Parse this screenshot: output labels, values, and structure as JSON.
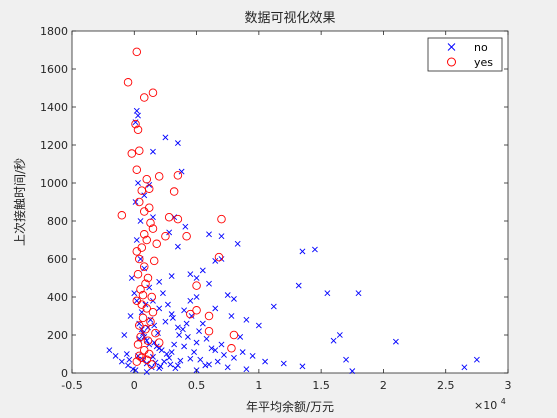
{
  "chart_data": {
    "type": "scatter",
    "title": "数据可视化效果",
    "xlabel": "年平均余额/万元",
    "ylabel": "上次接触时间/秒",
    "xlim": [
      -5000,
      30000
    ],
    "ylim": [
      0,
      1800
    ],
    "x_tick_labels": [
      "-0.5",
      "0",
      "0.5",
      "1",
      "1.5",
      "2",
      "2.5",
      "3"
    ],
    "x_tick_values": [
      -5000,
      0,
      5000,
      10000,
      15000,
      20000,
      25000,
      30000
    ],
    "x_exponent": "×10^4",
    "x_exponent_base": "×10",
    "x_exponent_power": "4",
    "y_ticks": [
      0,
      200,
      400,
      600,
      800,
      1000,
      1200,
      1400,
      1600,
      1800
    ],
    "grid": false,
    "legend_position": "top-right",
    "series": [
      {
        "name": "no",
        "marker": "x",
        "color": "#0000ff",
        "points": [
          [
            200,
            1380
          ],
          [
            300,
            1355
          ],
          [
            100,
            1320
          ],
          [
            2500,
            1240
          ],
          [
            3500,
            1210
          ],
          [
            1500,
            1165
          ],
          [
            3800,
            1060
          ],
          [
            1200,
            990
          ],
          [
            800,
            935
          ],
          [
            1500,
            820
          ],
          [
            3200,
            820
          ],
          [
            4100,
            770
          ],
          [
            2800,
            740
          ],
          [
            6000,
            730
          ],
          [
            7000,
            720
          ],
          [
            8300,
            680
          ],
          [
            3500,
            665
          ],
          [
            14500,
            650
          ],
          [
            13500,
            640
          ],
          [
            7000,
            600
          ],
          [
            6500,
            590
          ],
          [
            5500,
            540
          ],
          [
            4500,
            520
          ],
          [
            3000,
            510
          ],
          [
            5000,
            500
          ],
          [
            2000,
            480
          ],
          [
            6000,
            470
          ],
          [
            13200,
            460
          ],
          [
            15500,
            420
          ],
          [
            18000,
            420
          ],
          [
            7500,
            410
          ],
          [
            5000,
            400
          ],
          [
            8000,
            390
          ],
          [
            4500,
            380
          ],
          [
            11200,
            350
          ],
          [
            6500,
            340
          ],
          [
            4000,
            330
          ],
          [
            3000,
            310
          ],
          [
            7800,
            300
          ],
          [
            9000,
            280
          ],
          [
            2500,
            270
          ],
          [
            5500,
            260
          ],
          [
            10000,
            250
          ],
          [
            3500,
            240
          ],
          [
            16500,
            200
          ],
          [
            8500,
            190
          ],
          [
            16000,
            170
          ],
          [
            21000,
            165
          ],
          [
            5000,
            160
          ],
          [
            7000,
            150
          ],
          [
            4000,
            140
          ],
          [
            2000,
            130
          ],
          [
            6500,
            120
          ],
          [
            3000,
            110
          ],
          [
            9500,
            90
          ],
          [
            1500,
            85
          ],
          [
            8000,
            80
          ],
          [
            4500,
            75
          ],
          [
            17000,
            70
          ],
          [
            27500,
            70
          ],
          [
            10500,
            60
          ],
          [
            12000,
            50
          ],
          [
            6000,
            45
          ],
          [
            3500,
            40
          ],
          [
            13500,
            35
          ],
          [
            26500,
            30
          ],
          [
            2000,
            25
          ],
          [
            9000,
            20
          ],
          [
            5000,
            15
          ],
          [
            17500,
            10
          ],
          [
            1000,
            5
          ],
          [
            -2000,
            120
          ],
          [
            -1500,
            90
          ],
          [
            -1000,
            60
          ],
          [
            -500,
            40
          ],
          [
            -800,
            200
          ],
          [
            -300,
            300
          ],
          [
            500,
            600
          ],
          [
            800,
            550
          ],
          [
            1200,
            450
          ],
          [
            1500,
            380
          ],
          [
            900,
            360
          ],
          [
            600,
            320
          ],
          [
            1300,
            280
          ],
          [
            1100,
            240
          ],
          [
            700,
            210
          ],
          [
            400,
            180
          ],
          [
            1600,
            160
          ],
          [
            1800,
            140
          ],
          [
            2200,
            120
          ],
          [
            2600,
            100
          ],
          [
            300,
            90
          ],
          [
            700,
            70
          ],
          [
            1000,
            50
          ],
          [
            1400,
            30
          ],
          [
            2400,
            60
          ],
          [
            2800,
            80
          ],
          [
            3200,
            150
          ],
          [
            3600,
            200
          ],
          [
            4200,
            260
          ],
          [
            4600,
            300
          ],
          [
            5200,
            220
          ],
          [
            5800,
            180
          ],
          [
            6200,
            130
          ],
          [
            7200,
            95
          ],
          [
            200,
            700
          ],
          [
            500,
            800
          ],
          [
            100,
            900
          ],
          [
            300,
            1000
          ],
          [
            -200,
            500
          ],
          [
            0,
            420
          ],
          [
            200,
            380
          ],
          [
            400,
            260
          ],
          [
            600,
            230
          ],
          [
            800,
            190
          ],
          [
            1000,
            170
          ],
          [
            1200,
            150
          ],
          [
            -600,
            100
          ],
          [
            -400,
            70
          ],
          [
            -100,
            20
          ],
          [
            2000,
            340
          ],
          [
            2300,
            420
          ],
          [
            2700,
            360
          ],
          [
            3100,
            290
          ],
          [
            3900,
            230
          ],
          [
            4300,
            190
          ],
          [
            4800,
            110
          ],
          [
            5300,
            70
          ],
          [
            5700,
            40
          ],
          [
            6700,
            60
          ],
          [
            7500,
            30
          ],
          [
            8700,
            110
          ],
          [
            100,
            15
          ],
          [
            1700,
            55
          ],
          [
            2100,
            35
          ],
          [
            2900,
            45
          ],
          [
            3300,
            25
          ],
          [
            3700,
            65
          ],
          [
            1900,
            210
          ],
          [
            1600,
            250
          ]
        ]
      },
      {
        "name": "yes",
        "marker": "o",
        "color": "#ff0000",
        "points": [
          [
            200,
            1690
          ],
          [
            -500,
            1530
          ],
          [
            1500,
            1475
          ],
          [
            800,
            1450
          ],
          [
            100,
            1310
          ],
          [
            300,
            1280
          ],
          [
            -200,
            1155
          ],
          [
            400,
            1170
          ],
          [
            200,
            1070
          ],
          [
            1000,
            1020
          ],
          [
            2000,
            1035
          ],
          [
            3500,
            1040
          ],
          [
            3200,
            955
          ],
          [
            1200,
            970
          ],
          [
            600,
            960
          ],
          [
            400,
            900
          ],
          [
            1200,
            870
          ],
          [
            800,
            850
          ],
          [
            -1000,
            830
          ],
          [
            2800,
            820
          ],
          [
            3500,
            810
          ],
          [
            7000,
            810
          ],
          [
            1300,
            790
          ],
          [
            1500,
            760
          ],
          [
            800,
            730
          ],
          [
            2500,
            720
          ],
          [
            4200,
            720
          ],
          [
            1000,
            700
          ],
          [
            1800,
            680
          ],
          [
            600,
            660
          ],
          [
            200,
            640
          ],
          [
            6800,
            610
          ],
          [
            400,
            600
          ],
          [
            1600,
            590
          ],
          [
            800,
            560
          ],
          [
            300,
            520
          ],
          [
            1100,
            500
          ],
          [
            900,
            470
          ],
          [
            500,
            440
          ],
          [
            5000,
            460
          ],
          [
            700,
            410
          ],
          [
            1400,
            400
          ],
          [
            200,
            380
          ],
          [
            600,
            360
          ],
          [
            1000,
            340
          ],
          [
            5000,
            330
          ],
          [
            1500,
            320
          ],
          [
            4500,
            310
          ],
          [
            6000,
            300
          ],
          [
            700,
            290
          ],
          [
            1300,
            270
          ],
          [
            400,
            250
          ],
          [
            900,
            230
          ],
          [
            6000,
            220
          ],
          [
            1700,
            210
          ],
          [
            8000,
            200
          ],
          [
            500,
            190
          ],
          [
            1100,
            170
          ],
          [
            2000,
            160
          ],
          [
            300,
            150
          ],
          [
            7800,
            130
          ],
          [
            800,
            120
          ],
          [
            1200,
            100
          ],
          [
            400,
            90
          ],
          [
            600,
            80
          ],
          [
            1000,
            70
          ],
          [
            200,
            60
          ],
          [
            1400,
            45
          ]
        ]
      }
    ]
  }
}
